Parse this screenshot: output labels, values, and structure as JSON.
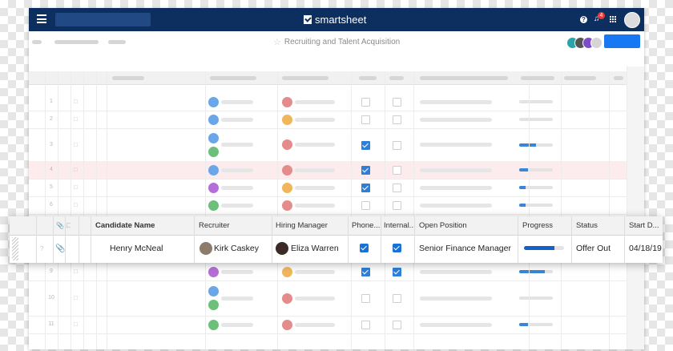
{
  "app": {
    "name": "smartsheet",
    "notification_count": "4",
    "help_glyph": "?",
    "sheet_title": "Recruiting and Talent Acquisition"
  },
  "icons": [
    "menu-icon",
    "logo-icon",
    "help-icon",
    "bell-icon",
    "apps-grid-icon",
    "star-icon",
    "attachment-icon",
    "comment-icon",
    "alert-icon",
    "form-icon"
  ],
  "colors": {
    "topbar": "#0d2f5f",
    "accent": "#1877f2",
    "row_highlight": "#fdecee",
    "checkbox": "#1871d6",
    "progress": "#1462c7"
  },
  "background_rows": [
    {
      "num": "1",
      "recruiter": "#6aa6e8",
      "hm": "#e48b8b",
      "phone": false,
      "internal": false,
      "progress": 0
    },
    {
      "num": "2",
      "recruiter": "#6aa6e8",
      "hm": "#f1b65b",
      "phone": false,
      "internal": false,
      "progress": 0
    },
    {
      "num": "3",
      "recruiter": "#6aa6e8",
      "hm": "#e48b8b",
      "phone": true,
      "internal": false,
      "progress": 0.5
    },
    {
      "num": "4",
      "recruiter": "#6aa6e8",
      "hm": "#e48b8b",
      "phone": true,
      "internal": false,
      "progress": 0.25
    },
    {
      "num": "5",
      "recruiter": "#b56ed8",
      "hm": "#f1b65b",
      "phone": true,
      "internal": false,
      "progress": 0.2
    },
    {
      "num": "6",
      "recruiter": "#6cc07a",
      "hm": "#e48b8b",
      "phone": false,
      "internal": false,
      "progress": 0.2
    },
    {
      "num": "9",
      "recruiter": "#b56ed8",
      "hm": "#f1b65b",
      "phone": true,
      "internal": true,
      "progress": 0.75
    },
    {
      "num": "10",
      "recruiter": "#6aa6e8",
      "hm": "#e48b8b",
      "phone": false,
      "internal": false,
      "progress": 0
    },
    {
      "num": "11",
      "recruiter": "#6cc07a",
      "hm": "#e48b8b",
      "phone": false,
      "internal": false,
      "progress": 0.25
    }
  ],
  "table": {
    "headers": {
      "candidate_name": "Candidate Name",
      "recruiter": "Recruiter",
      "hiring_manager": "Hiring Manager",
      "phone": "Phone...",
      "internal": "Internal...",
      "open_position": "Open Position",
      "progress": "Progress",
      "status": "Status",
      "start_date": "Start D..."
    },
    "focused_row": {
      "candidate_name": "Henry McNeal",
      "recruiter": "Kirk Caskey",
      "hiring_manager": "Eliza Warren",
      "phone_screen": true,
      "internal_referral": true,
      "open_position": "Senior Finance Manager",
      "progress": 0.75,
      "status": "Offer Out",
      "start_date": "04/18/19"
    }
  }
}
